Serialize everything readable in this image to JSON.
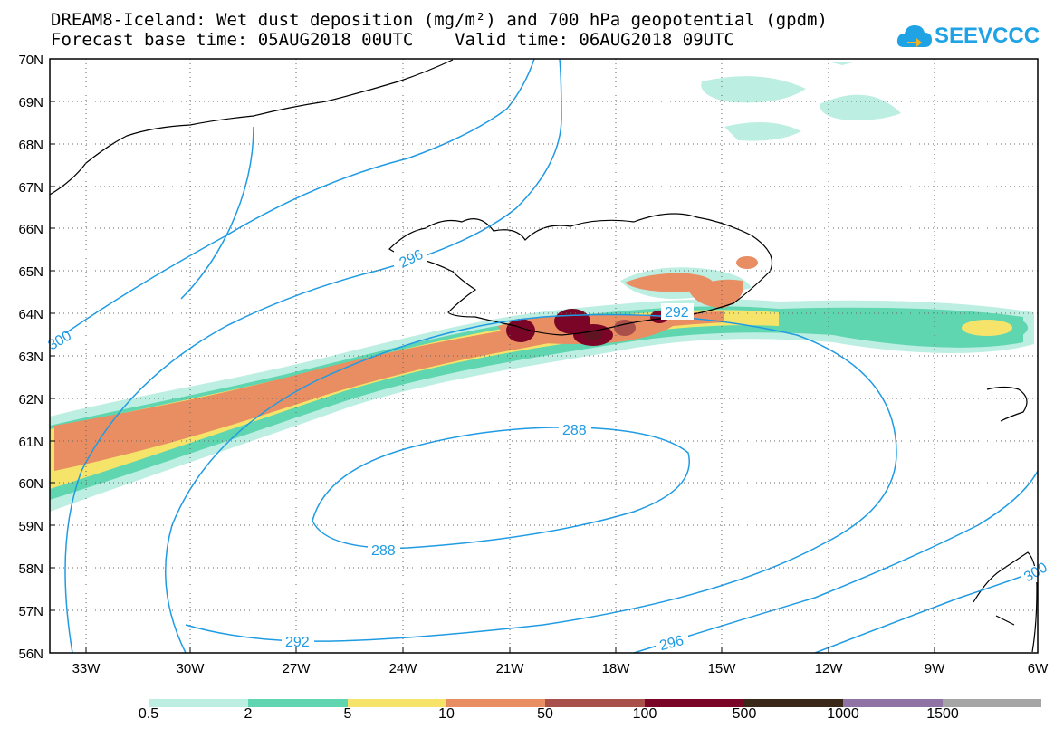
{
  "title_line1": "DREAM8-Iceland: Wet dust deposition (mg/m²) and 700 hPa geopotential (gpdm)",
  "title_line2": "Forecast base time: 05AUG2018 00UTC    Valid time: 06AUG2018 09UTC",
  "logo_text": "SEEVCCC",
  "lat_labels": [
    "70N",
    "69N",
    "68N",
    "67N",
    "66N",
    "65N",
    "64N",
    "63N",
    "62N",
    "61N",
    "60N",
    "59N",
    "58N",
    "57N",
    "56N"
  ],
  "lon_labels": [
    "33W",
    "30W",
    "27W",
    "24W",
    "21W",
    "18W",
    "15W",
    "12W",
    "9W",
    "6W"
  ],
  "contour_labels": [
    "296",
    "292",
    "288",
    "288",
    "292",
    "296",
    "300",
    "300"
  ],
  "colorbar": {
    "levels": [
      "0.5",
      "2",
      "5",
      "10",
      "50",
      "100",
      "500",
      "1000",
      "1500"
    ],
    "colors": [
      "#bdeee2",
      "#5fd6b0",
      "#f6e46a",
      "#e88e62",
      "#a9504a",
      "#7a0526",
      "#3a2818",
      "#8e73a4",
      "#a5a5a5"
    ]
  },
  "contour_color": "#1f9be3"
}
